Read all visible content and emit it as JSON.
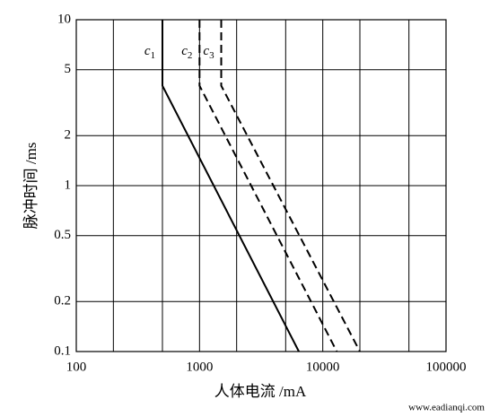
{
  "chart_data": {
    "type": "line",
    "x_label": "人体电流 /mA",
    "y_label": "脉冲时间 /ms",
    "xscale": "log",
    "yscale": "log",
    "xlim": [
      100,
      100000
    ],
    "ylim": [
      0.1,
      10
    ],
    "xticks": [
      100,
      1000,
      10000,
      100000
    ],
    "xgrid_minor": [
      200,
      500,
      2000,
      5000,
      20000,
      50000
    ],
    "yticks": [
      0.1,
      0.2,
      0.5,
      1,
      2,
      5,
      10
    ],
    "grid": true,
    "series": [
      {
        "name": "c1",
        "color": "#000000",
        "dash": "solid",
        "x": [
          500,
          500,
          6400
        ],
        "values": [
          10,
          4,
          0.1
        ]
      },
      {
        "name": "c2",
        "color": "#000000",
        "dash": "dashed",
        "x": [
          1000,
          1000,
          13000
        ],
        "values": [
          10,
          4,
          0.1
        ]
      },
      {
        "name": "c3",
        "color": "#000000",
        "dash": "dashed",
        "x": [
          1500,
          1500,
          20000
        ],
        "values": [
          10,
          4,
          0.1
        ]
      }
    ],
    "watermark": "www.eadianqi.com"
  }
}
